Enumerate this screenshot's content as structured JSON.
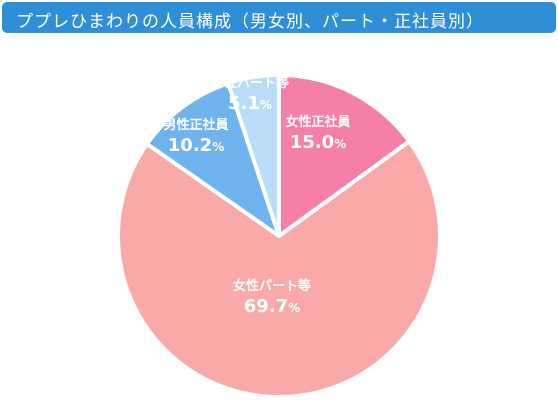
{
  "header": {
    "title": "ププレひまわりの人員構成（男女別、パート・正社員別）"
  },
  "chart_data": {
    "type": "pie",
    "title": "ププレひまわりの人員構成（男女別、パート・正社員別）",
    "slices": [
      {
        "label": "女性正社員",
        "value": 15.0,
        "value_label": "15.0",
        "color": "#f57fa8"
      },
      {
        "label": "女性パート等",
        "value": 69.7,
        "value_label": "69.7",
        "color": "#f9aaa8"
      },
      {
        "label": "男性正社員",
        "value": 10.2,
        "value_label": "10.2",
        "color": "#6fb4ee"
      },
      {
        "label": "男性パート等",
        "value": 5.1,
        "value_label": "5.1",
        "color": "#b9ddf6"
      }
    ],
    "unit": "%"
  }
}
